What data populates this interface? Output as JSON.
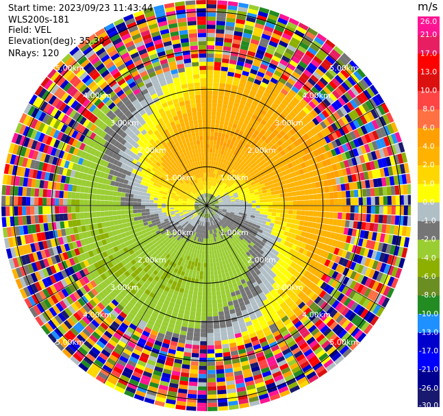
{
  "info": {
    "start_time": "Start time: 2023/09/23 11:43:44",
    "station": "WLS200s-181",
    "field": "Field: VEL",
    "elevation": "Elevation(deg): 35.30",
    "nrays": "NRays: 120"
  },
  "colorbar": {
    "unit": "m/s",
    "ticks": [
      "26.0",
      "21.0",
      "17.0",
      "13.0",
      "10.0",
      "8.0",
      "6.0",
      "4.0",
      "2.0",
      "1.0",
      "0.0",
      "-1.0",
      "-2.0",
      "-4.0",
      "-6.0",
      "-8.0",
      "-10.0",
      "-13.0",
      "-17.0",
      "-21.0",
      "-26.0",
      "-30.0"
    ],
    "colors": [
      "#ff1493",
      "#e81e63",
      "#ff0000",
      "#dd1010",
      "#ff4444",
      "#ff7043",
      "#ffa000",
      "#ffb300",
      "#ffd700",
      "#ffff00",
      "#b0bec5",
      "#757575",
      "#9acd32",
      "#8db000",
      "#6b8e23",
      "#228b22",
      "#1e90ff",
      "#0000cd",
      "#0000ff",
      "#000090",
      "#191970"
    ]
  },
  "chart_data": {
    "type": "polar-ppi",
    "field": "VEL",
    "units": "m/s",
    "nrays": 120,
    "range_rings_km": [
      1.0,
      2.0,
      3.0,
      4.0,
      5.0
    ],
    "ring_labels": [
      "1.00km",
      "2.00km",
      "3.00km",
      "4.00km",
      "5.00km"
    ],
    "max_range_km": 5.3,
    "azimuth_spokes_deg": [
      0,
      30,
      60,
      90,
      120,
      150,
      180,
      210,
      240,
      270,
      300,
      330
    ],
    "pattern": {
      "inner_noise_km": 0.35,
      "valid_to_km": 3.6,
      "noise_beyond_km": 3.6,
      "toward_direction": "S",
      "away_direction": "N",
      "max_radial_speed_ms": 4.0
    }
  }
}
